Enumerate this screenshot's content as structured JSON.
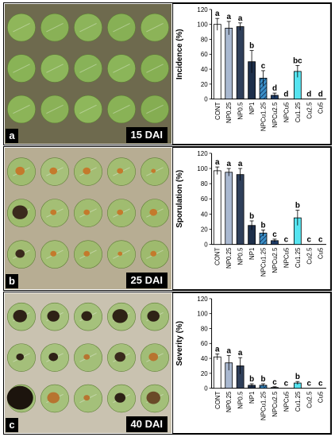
{
  "panels": [
    {
      "letter": "a",
      "dai": "15 DAI",
      "chart_key": 0,
      "photo": {
        "bg": "#6e6a4e",
        "discs": [
          [
            "#8fb65a",
            "#89b156",
            "#8cb45a",
            "#87b055",
            "#8cb358"
          ],
          [
            "#89b356",
            "#8db65b",
            "#88b258",
            "#8bb559",
            "#86af53"
          ],
          [
            "#8cb458",
            "#8ab157",
            "#8eb75b",
            "#89b256",
            "#85ad52"
          ]
        ],
        "lesions": []
      }
    },
    {
      "letter": "b",
      "dai": "25 DAI",
      "chart_key": 1,
      "photo": {
        "bg": "#b7ad93",
        "discs": [
          [
            "#9fbc70",
            "#a6c07a",
            "#a3bd73",
            "#a2bd72",
            "#9fbb6f"
          ],
          [
            "#9ebc6e",
            "#a4bf75",
            "#a1bd71",
            "#a0bc70",
            "#9dba6d"
          ],
          [
            "#a2bd73",
            "#a3bf74",
            "#9fbb6f",
            "#a1bd71",
            "#9eba6e"
          ]
        ],
        "lesions": [
          [
            0,
            0,
            "#c47a2c",
            0.3
          ],
          [
            0,
            1,
            "#c47a2c",
            0.25
          ],
          [
            0,
            2,
            "#c47a2c",
            0.25
          ],
          [
            0,
            3,
            "#c47a2c",
            0.2
          ],
          [
            0,
            4,
            "#c47a2c",
            0.15
          ],
          [
            1,
            0,
            "#3a2a1c",
            0.5
          ],
          [
            1,
            1,
            "#c47a2c",
            0.2
          ],
          [
            1,
            2,
            "#c47a2c",
            0.2
          ],
          [
            1,
            3,
            "#c47a2c",
            0.2
          ],
          [
            1,
            4,
            "#c47a2c",
            0.25
          ],
          [
            2,
            0,
            "#3a2a1c",
            0.3
          ],
          [
            2,
            1,
            "#c47a2c",
            0.2
          ],
          [
            2,
            2,
            "#c47a2c",
            0.2
          ],
          [
            2,
            3,
            "#c47a2c",
            0.15
          ],
          [
            2,
            4,
            "#c47a2c",
            0.2
          ]
        ]
      }
    },
    {
      "letter": "c",
      "dai": "40 DAI",
      "chart_key": 2,
      "photo": {
        "bg": "#c9c2b0",
        "discs": [
          [
            "#a3c07a",
            "#a7c27e",
            "#a5c17c",
            "#a6c17c",
            "#a2be78"
          ],
          [
            "#a4bf7a",
            "#a6c27d",
            "#a3bf79",
            "#a5c07b",
            "#a1bd77"
          ],
          [
            "#a2bf78",
            "#a5c17b",
            "#a4c07a",
            "#a6c17c",
            "#a3bf79"
          ]
        ],
        "lesions": [
          [
            0,
            0,
            "#2e2216",
            0.45
          ],
          [
            0,
            1,
            "#2e2216",
            0.4
          ],
          [
            0,
            2,
            "#2e2216",
            0.35
          ],
          [
            0,
            3,
            "#2e2216",
            0.5
          ],
          [
            0,
            4,
            "#2e2216",
            0.4
          ],
          [
            1,
            0,
            "#2e2216",
            0.25
          ],
          [
            1,
            1,
            "#2e2216",
            0.3
          ],
          [
            1,
            2,
            "#b77430",
            0.2
          ],
          [
            1,
            3,
            "#3a2a1c",
            0.35
          ],
          [
            1,
            4,
            "#b77430",
            0.3
          ],
          [
            2,
            0,
            "#1c140d",
            0.85
          ],
          [
            2,
            1,
            "#b77430",
            0.4
          ],
          [
            2,
            2,
            "#b77430",
            0.2
          ],
          [
            2,
            3,
            "#2e2216",
            0.35
          ],
          [
            2,
            4,
            "#6a4a28",
            0.45
          ]
        ]
      }
    }
  ],
  "chart_data": [
    {
      "type": "bar",
      "ylabel": "Incidence (%)",
      "ylim": [
        0,
        120
      ],
      "yticks": [
        0,
        20,
        40,
        60,
        80,
        100,
        120
      ],
      "categories": [
        "CONT",
        "NP0.25",
        "NP0.5",
        "NP1",
        "NPCu1.25",
        "NPCu2.5",
        "NPCu5",
        "Cu1.25",
        "Cu2.5",
        "Cu5"
      ],
      "values": [
        100,
        95,
        97,
        50,
        28,
        5,
        0,
        37,
        0,
        0
      ],
      "errors": [
        8,
        9,
        5,
        15,
        10,
        3,
        0,
        8,
        0,
        0
      ],
      "letters": [
        "a",
        "a",
        "a",
        "b",
        "c",
        "d",
        "d",
        "bc",
        "d",
        "d"
      ]
    },
    {
      "type": "bar",
      "ylabel": "Sporulation (%)",
      "ylim": [
        0,
        120
      ],
      "yticks": [
        0,
        20,
        40,
        60,
        80,
        100,
        120
      ],
      "categories": [
        "CONT",
        "NP0.25",
        "NP0.5",
        "NP1",
        "NPCu1.25",
        "NPCu2.5",
        "NPCu5",
        "Cu1.25",
        "Cu2.5",
        "Cu5"
      ],
      "values": [
        97,
        95,
        92,
        25,
        15,
        5,
        0,
        35,
        0,
        0
      ],
      "errors": [
        5,
        5,
        8,
        6,
        4,
        2,
        0,
        10,
        0,
        0
      ],
      "letters": [
        "a",
        "a",
        "a",
        "b",
        "b",
        "c",
        "c",
        "b",
        "c",
        "c"
      ]
    },
    {
      "type": "bar",
      "ylabel": "Severity (%)",
      "ylim": [
        0,
        120
      ],
      "yticks": [
        0,
        20,
        40,
        60,
        80,
        100,
        120
      ],
      "categories": [
        "CONT",
        "NP0.25",
        "NP0.5",
        "NP1",
        "NPCu1.25",
        "NPCu2.5",
        "NPCu5",
        "Cu1.25",
        "Cu2.5",
        "Cu5"
      ],
      "values": [
        42,
        34,
        30,
        4,
        4,
        1,
        0,
        7,
        0,
        0
      ],
      "errors": [
        4,
        10,
        11,
        2,
        2,
        1,
        0,
        2,
        0,
        0
      ],
      "letters": [
        "a",
        "a",
        "a",
        "b",
        "b",
        "c",
        "c",
        "b",
        "c",
        "c"
      ]
    }
  ],
  "bar_styles": [
    {
      "fill": "#ffffff"
    },
    {
      "fill": "#a9b8d0"
    },
    {
      "fill": "#2f3f5a"
    },
    {
      "fill": "#1e2f4a"
    },
    {
      "fill": "#3b8fc7",
      "hatch": true
    },
    {
      "fill": "#1f3d68"
    },
    {
      "fill": "#1f3d68"
    },
    {
      "fill": "#56e4f0"
    },
    {
      "fill": "#2aa8c9"
    },
    {
      "fill": "#1f6d8f"
    }
  ]
}
